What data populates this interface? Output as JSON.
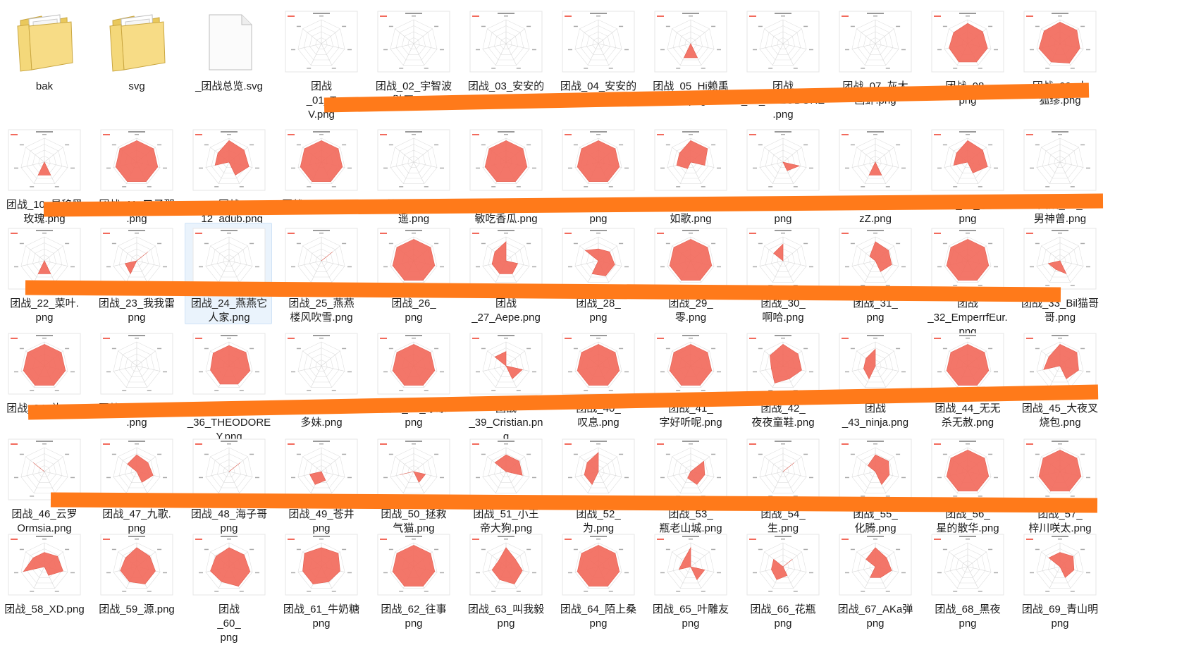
{
  "explorer": {
    "items": [
      {
        "label": "bak",
        "kind": "folder"
      },
      {
        "label": "svg",
        "kind": "folder"
      },
      {
        "label": "_团战总览.svg",
        "kind": "file"
      },
      {
        "label": "团战\n_01_T\nV.png",
        "kind": "png",
        "v": [
          0,
          0,
          0,
          0,
          0,
          0,
          0
        ]
      },
      {
        "label": "团战_02_宇智波\n鼬王.png",
        "kind": "png",
        "v": [
          0,
          0,
          0,
          0,
          0,
          0,
          0
        ]
      },
      {
        "label": "团战_03_安安的\n男神.png",
        "kind": "png",
        "v": [
          0,
          0,
          0,
          0,
          0,
          0,
          0
        ]
      },
      {
        "label": "团战_04_安安的\n男神曾.png",
        "kind": "png",
        "v": [
          0,
          0,
          0,
          0,
          0,
          0,
          0
        ]
      },
      {
        "label": "团战_05_Hi赖禹\n三.png",
        "kind": "png",
        "v": [
          0,
          0,
          0,
          0.65,
          0.65,
          0,
          0
        ]
      },
      {
        "label": "团战\n_06_THEODORE\n.png",
        "kind": "png",
        "v": [
          0,
          0,
          0,
          0,
          0,
          0,
          0
        ]
      },
      {
        "label": "团战_07_灰太\n画虾.png",
        "kind": "png",
        "v": [
          0,
          0,
          0,
          0,
          0,
          0,
          0
        ]
      },
      {
        "label": "团战_08_\npng",
        "kind": "png",
        "v": [
          0.85,
          0.8,
          0.85,
          0.85,
          0.85,
          0.8,
          0.75
        ]
      },
      {
        "label": "团战_09_小\n狐缪.png",
        "kind": "png",
        "v": [
          0.9,
          0.9,
          0.85,
          0.9,
          0.85,
          0.9,
          0.85
        ]
      },
      {
        "label": "团战_10_星移黑\n玫瑰.png",
        "kind": "png",
        "v": [
          0,
          0,
          0,
          0.6,
          0.6,
          0,
          0
        ]
      },
      {
        "label": "团战_11_叉子那\n.png",
        "kind": "png",
        "v": [
          0.9,
          0.9,
          0.9,
          0.9,
          0.9,
          0.9,
          0.9
        ]
      },
      {
        "label": "团战\n_12_adub.png",
        "kind": "png",
        "v": [
          0.9,
          0.8,
          0.85,
          0.6,
          0,
          0.6,
          0.6
        ]
      },
      {
        "label": "团战_13_TK.png",
        "kind": "png",
        "v": [
          0.9,
          0.9,
          0.9,
          0.9,
          0.9,
          0.9,
          0.9
        ]
      },
      {
        "label": "团战_14_不良人\n遥.png",
        "kind": "png",
        "v": [
          0,
          0,
          0,
          0,
          0,
          0,
          0
        ]
      },
      {
        "label": "团战_15_花粉过\n敏吃香瓜.png",
        "kind": "png",
        "v": [
          0.9,
          0.9,
          0.9,
          0.9,
          0.9,
          0.9,
          0.9
        ]
      },
      {
        "label": "团战_16_夜雨沐\npng",
        "kind": "png",
        "v": [
          0.9,
          0.9,
          0.9,
          0.9,
          0.9,
          0.9,
          0.9
        ]
      },
      {
        "label": "团战_17_Lc微风\n如歌.png",
        "kind": "png",
        "v": [
          0.9,
          0.9,
          0.6,
          0,
          0.3,
          0.6,
          0.6
        ]
      },
      {
        "label": "团战_18_灯球子\npng",
        "kind": "png",
        "v": [
          0,
          0,
          0.7,
          0.4,
          0,
          0,
          0
        ]
      },
      {
        "label": "团战_19_比德莱\nzZ.png",
        "kind": "png",
        "v": [
          0,
          0,
          0,
          0.6,
          0.6,
          0,
          0
        ]
      },
      {
        "label": "团战_20_小姬\npng",
        "kind": "png",
        "v": [
          0.9,
          0.8,
          0.85,
          0.5,
          0,
          0.6,
          0.6
        ]
      },
      {
        "label": "团战_21_\n男神曾.png",
        "kind": "png",
        "v": [
          0,
          0,
          0,
          0,
          0,
          0,
          0
        ]
      },
      {
        "label": "团战_22_菜叶.\npng",
        "kind": "png",
        "v": [
          0,
          0,
          0,
          0.6,
          0.6,
          0,
          0
        ]
      },
      {
        "label": "团战_23_我我雷\npng",
        "kind": "png",
        "v": [
          0,
          0.6,
          0,
          0,
          0.6,
          0.5,
          0
        ]
      },
      {
        "label": "团战_24_燕燕它\n人家.png",
        "kind": "png",
        "selected": true,
        "v": [
          0,
          0,
          0,
          0,
          0,
          0,
          0
        ]
      },
      {
        "label": "团战_25_燕燕\n楼风吹雪.png",
        "kind": "png",
        "v": [
          0,
          0.6,
          0,
          0,
          0,
          0,
          0
        ]
      },
      {
        "label": "团战_26_\npng",
        "kind": "png",
        "v": [
          0.9,
          0.9,
          0.9,
          0.9,
          0.9,
          0.9,
          0.9
        ]
      },
      {
        "label": "团战\n_27_Aepe.png",
        "kind": "png",
        "v": [
          0.8,
          0,
          0.5,
          0.6,
          0.6,
          0.6,
          0.6
        ]
      },
      {
        "label": "团战_28_\npng",
        "kind": "png",
        "v": [
          0.5,
          0.6,
          0.7,
          0.7,
          0.6,
          0,
          0.7
        ]
      },
      {
        "label": "团战_29_\n零.png",
        "kind": "png",
        "v": [
          0.9,
          0.9,
          0.9,
          0.9,
          0.9,
          0.9,
          0.9
        ]
      },
      {
        "label": "团战_30_\n啊哈.png",
        "kind": "png",
        "v": [
          0.7,
          0,
          0,
          0,
          0,
          0,
          0.5
        ]
      },
      {
        "label": "团战_31_\npng",
        "kind": "png",
        "v": [
          0.8,
          0.7,
          0.7,
          0.5,
          0,
          0,
          0.3
        ]
      },
      {
        "label": "团战\n_32_EmperrfEur.\npng",
        "kind": "png",
        "v": [
          0.9,
          0.9,
          0.9,
          0.9,
          0.9,
          0.9,
          0.9
        ]
      },
      {
        "label": "团战_33_Bil猫哥\n哥.png",
        "kind": "png",
        "v": [
          0,
          0,
          0,
          0.6,
          0.4,
          0.5,
          0
        ]
      },
      {
        "label": "团战_34_礼.png",
        "kind": "png",
        "v": [
          0.9,
          0.9,
          0.9,
          0.9,
          0.9,
          0.9,
          0.9
        ]
      },
      {
        "label": "团战_35_要吃糖\n.png",
        "kind": "png",
        "v": [
          0,
          0,
          0,
          0,
          0,
          0,
          0
        ]
      },
      {
        "label": "团战\n_36_THEODORE\nY.png",
        "kind": "png",
        "v": [
          0.85,
          0.9,
          0.9,
          0.85,
          0.85,
          0.8,
          0.85
        ]
      },
      {
        "label": "团战_37_凉yo多\n多妹.png",
        "kind": "png",
        "v": [
          0,
          0,
          0,
          0,
          0,
          0,
          0
        ]
      },
      {
        "label": "团战_38_凉凉\npng",
        "kind": "png",
        "v": [
          0.9,
          0.9,
          0.9,
          0.9,
          0.9,
          0.9,
          0.9
        ]
      },
      {
        "label": "团战\n_39_Cristian.pn\ng",
        "kind": "png",
        "v": [
          0.6,
          0,
          0.7,
          0.6,
          0,
          0,
          0.6
        ]
      },
      {
        "label": "团战_40_\n叹息.png",
        "kind": "png",
        "v": [
          0.9,
          0.9,
          0.9,
          0.9,
          0.9,
          0.9,
          0.9
        ]
      },
      {
        "label": "团战_41_\n字好听呢.png",
        "kind": "png",
        "v": [
          0.9,
          0.9,
          0.9,
          0.9,
          0.9,
          0.9,
          0.9
        ]
      },
      {
        "label": "团战_42_\n夜夜童鞋.png",
        "kind": "png",
        "v": [
          0.9,
          0.8,
          0.8,
          0.6,
          0.8,
          0.5,
          0.7
        ]
      },
      {
        "label": "团战\n_43_ninja.png",
        "kind": "png",
        "v": [
          0.7,
          0,
          0,
          0,
          0.6,
          0.5,
          0.5
        ]
      },
      {
        "label": "团战_44_无无\n杀无赦.png",
        "kind": "png",
        "v": [
          0.9,
          0.9,
          0.9,
          0.9,
          0.9,
          0.9,
          0.9
        ]
      },
      {
        "label": "团战_45_大夜叉\n烧包.png",
        "kind": "png",
        "v": [
          0.9,
          0.9,
          0.8,
          0.6,
          0,
          0.7,
          0.6
        ]
      },
      {
        "label": "团战_46_云罗\nOrmsia.png",
        "kind": "png",
        "v": [
          0,
          0,
          0,
          0,
          0,
          0,
          0.6
        ]
      },
      {
        "label": "团战_47_九歌.\npng",
        "kind": "png",
        "v": [
          0.7,
          0.6,
          0.7,
          0.5,
          0,
          0,
          0.5
        ]
      },
      {
        "label": "团战_48_海子哥\npng",
        "kind": "png",
        "v": [
          0,
          0.6,
          0,
          0,
          0,
          0,
          0
        ]
      },
      {
        "label": "团战_49_苍井\npng",
        "kind": "png",
        "v": [
          0,
          0,
          0,
          0.4,
          0.6,
          0.5,
          0
        ]
      },
      {
        "label": "团战_50_拯救\n气猫.png",
        "kind": "png",
        "v": [
          0,
          0,
          0.5,
          0.5,
          0,
          0.6,
          0
        ]
      },
      {
        "label": "团战_51_小王\n帝大狗.png",
        "kind": "png",
        "v": [
          0.7,
          0.7,
          0.7,
          0,
          0,
          0,
          0.6
        ]
      },
      {
        "label": "团战_52_\n为.png",
        "kind": "png",
        "v": [
          0.8,
          0,
          0,
          0,
          0.6,
          0.6,
          0.6
        ]
      },
      {
        "label": "团战_53_\n瓶老山城.png",
        "kind": "png",
        "v": [
          0,
          0.7,
          0.6,
          0.6,
          0.3,
          0,
          0
        ]
      },
      {
        "label": "团战_54_\n生.png",
        "kind": "png",
        "v": [
          0,
          0.6,
          0,
          0,
          0,
          0,
          0
        ]
      },
      {
        "label": "团战_55_\n化腾.png",
        "kind": "png",
        "v": [
          0.7,
          0.7,
          0.6,
          0.6,
          0,
          0,
          0.4
        ]
      },
      {
        "label": "团战_56_\n星的散华.png",
        "kind": "png",
        "v": [
          0.9,
          0.9,
          0.9,
          0.9,
          0.9,
          0.9,
          0.9
        ]
      },
      {
        "label": "团战_57_\n梓川咲太.png",
        "kind": "png",
        "v": [
          0.9,
          0.9,
          0.9,
          0.9,
          0.9,
          0.9,
          0.9
        ]
      },
      {
        "label": "团战_58_XD.png",
        "kind": "png",
        "v": [
          0.6,
          0.7,
          0.8,
          0.4,
          0,
          0.9,
          0.6
        ]
      },
      {
        "label": "团战_59_源.png",
        "kind": "png",
        "v": [
          0.8,
          0.7,
          0.8,
          0.8,
          0.7,
          0.7,
          0.6
        ]
      },
      {
        "label": "团战\n_60_\npng",
        "kind": "png",
        "v": [
          0.8,
          0.8,
          0.9,
          0.9,
          0.7,
          0.8,
          0.7
        ]
      },
      {
        "label": "团战_61_牛奶糖\npng",
        "kind": "png",
        "v": [
          0.8,
          0.9,
          0.8,
          0.7,
          0.8,
          0.8,
          0.9
        ]
      },
      {
        "label": "团战_62_往事\npng",
        "kind": "png",
        "v": [
          0.9,
          0.9,
          0.9,
          0.9,
          0.9,
          0.9,
          0.9
        ]
      },
      {
        "label": "团战_63_叫我毅\npng",
        "kind": "png",
        "v": [
          0.8,
          0.5,
          0.7,
          0.8,
          0.6,
          0.6,
          0.4
        ]
      },
      {
        "label": "团战_64_陌上桑\npng",
        "kind": "png",
        "v": [
          0.9,
          0.9,
          0.9,
          0.9,
          0.9,
          0.9,
          0.9
        ]
      },
      {
        "label": "团战_65_叶雕友\npng",
        "kind": "png",
        "v": [
          0.8,
          0,
          0.6,
          0.6,
          0,
          0.5,
          0.4
        ]
      },
      {
        "label": "团战_66_花瓶\npng",
        "kind": "png",
        "v": [
          0,
          0.5,
          0,
          0.4,
          0.6,
          0.5,
          0.5
        ]
      },
      {
        "label": "团战_67_AKa弹\npng",
        "kind": "png",
        "v": [
          0.8,
          0.6,
          0.7,
          0.5,
          0.5,
          0,
          0.5
        ]
      },
      {
        "label": "团战_68_黑夜\npng",
        "kind": "png",
        "v": [
          0,
          0,
          0,
          0,
          0,
          0,
          0
        ]
      },
      {
        "label": "团战_69_青山明\npng",
        "kind": "png",
        "v": [
          0.6,
          0.7,
          0.6,
          0.5,
          0,
          0,
          0.6
        ]
      }
    ]
  },
  "colors": {
    "radar_fill": "#f26a5c",
    "strike": "#ff7a1a",
    "folder": "#f4d87a",
    "selection": "#eaf3fc"
  }
}
